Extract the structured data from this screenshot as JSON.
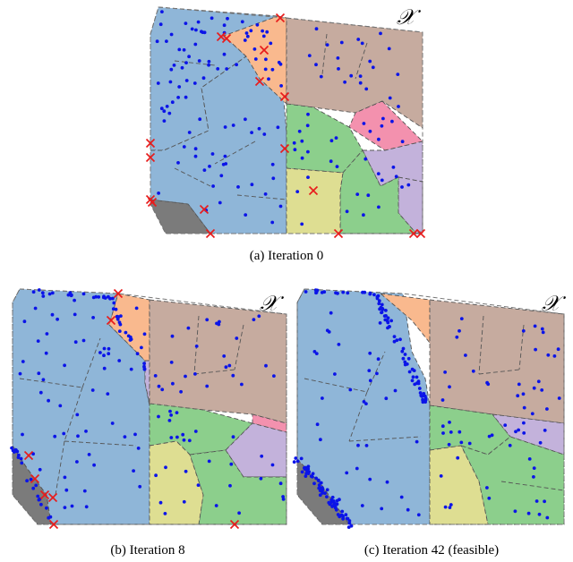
{
  "figure": {
    "domain_symbol": "𝒳",
    "panels": [
      {
        "id": "a",
        "caption": "(a) Iteration 0"
      },
      {
        "id": "b",
        "caption": "(b) Iteration 8"
      },
      {
        "id": "c",
        "caption": "(c) Iteration 42 (feasible)"
      }
    ]
  },
  "colors": {
    "blue_region": "#8fb6d8",
    "brown_region": "#c6ab9f",
    "orange_region": "#f9b98e",
    "green_region": "#8ccf8c",
    "yellow_region": "#dede92",
    "purple_region": "#c3b2db",
    "pink_region": "#f391ae",
    "gray_region": "#7b7b7b",
    "sample_point": "#0b14e8",
    "infeasible_marker": "#e81c1c"
  }
}
